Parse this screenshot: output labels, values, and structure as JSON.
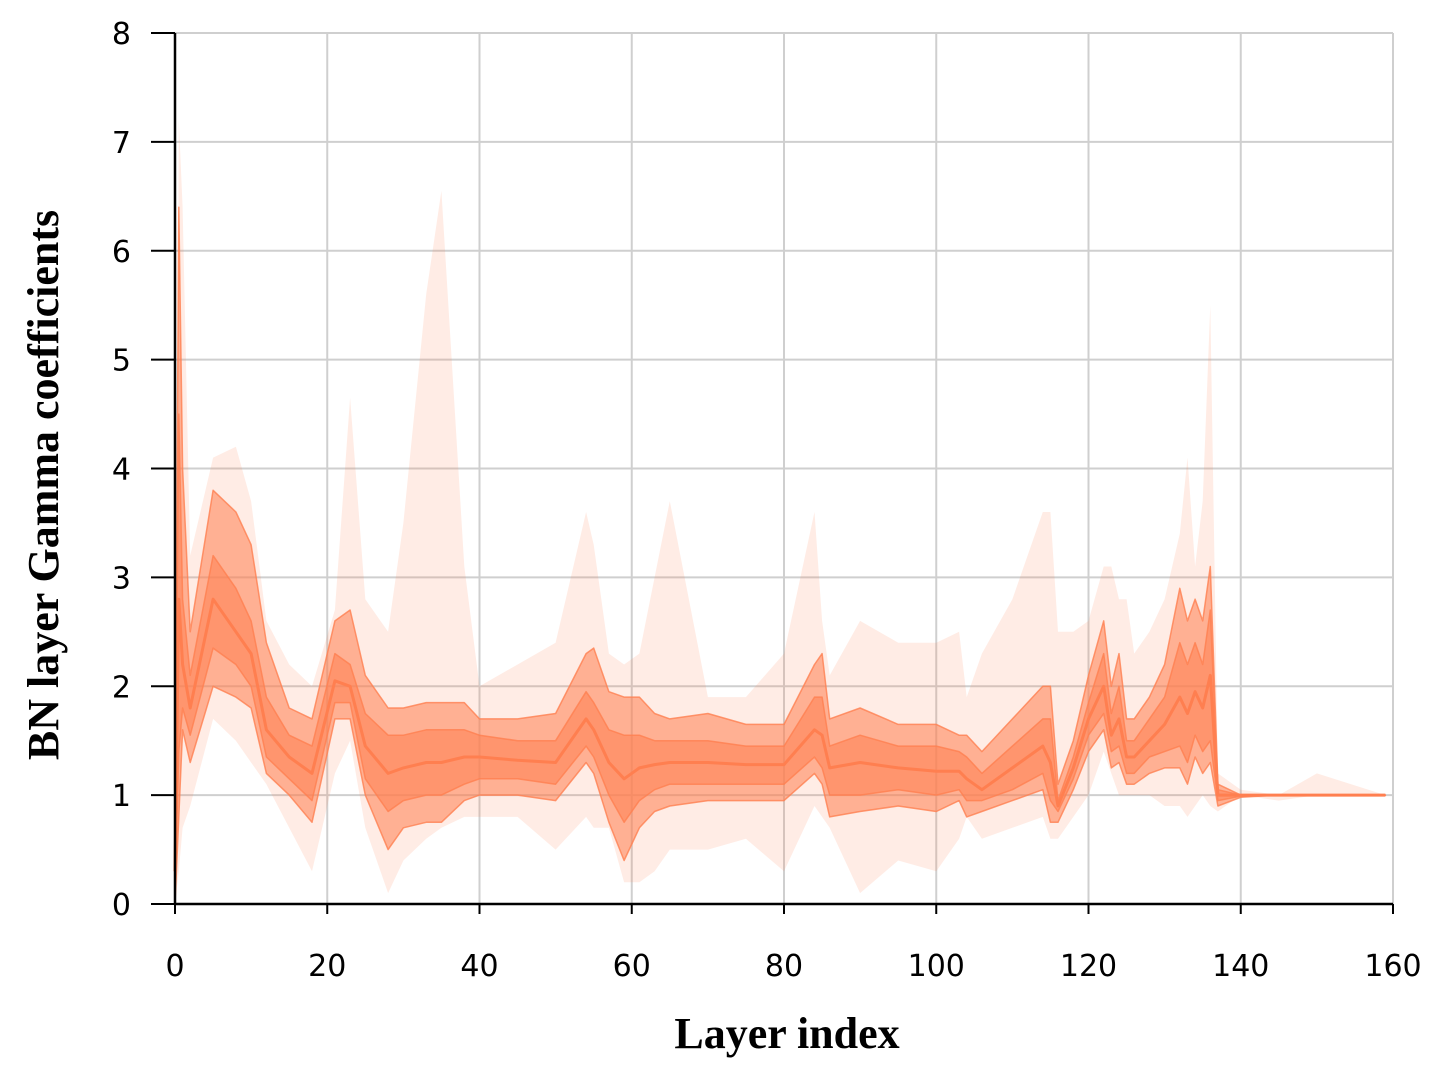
{
  "chart_data": {
    "type": "area",
    "xlabel": "Layer index",
    "ylabel": "BN layer Gamma coefficients",
    "xlim": [
      0,
      160
    ],
    "ylim": [
      0,
      8
    ],
    "xticks": [
      0,
      20,
      40,
      60,
      80,
      100,
      120,
      140,
      160
    ],
    "yticks": [
      0,
      1,
      2,
      3,
      4,
      5,
      6,
      7,
      8
    ],
    "grid": true,
    "color": "#ff7f50",
    "x": [
      0,
      0.5,
      1,
      2,
      5,
      8,
      10,
      12,
      15,
      18,
      21,
      23,
      25,
      28,
      30,
      33,
      35,
      38,
      40,
      45,
      50,
      54,
      55,
      57,
      59,
      61,
      63,
      65,
      70,
      75,
      80,
      84,
      85,
      86,
      90,
      95,
      100,
      103,
      104,
      106,
      110,
      114,
      115,
      116,
      118,
      120,
      122,
      123,
      124,
      125,
      126,
      128,
      130,
      132,
      133,
      134,
      135,
      136,
      137,
      140,
      145,
      150,
      159
    ],
    "bands": [
      {
        "level": "min-max",
        "upper": [
          0.2,
          7.2,
          6.4,
          3.2,
          4.1,
          4.2,
          3.7,
          2.6,
          2.2,
          2.0,
          2.7,
          4.65,
          2.8,
          2.5,
          3.5,
          5.6,
          6.55,
          3.1,
          2.0,
          2.2,
          2.4,
          3.6,
          3.3,
          2.3,
          2.2,
          2.3,
          3.0,
          3.7,
          1.9,
          1.9,
          2.3,
          3.6,
          2.6,
          2.1,
          2.6,
          2.4,
          2.4,
          2.5,
          1.9,
          2.3,
          2.8,
          3.6,
          3.6,
          2.5,
          2.5,
          2.6,
          3.1,
          3.1,
          2.8,
          2.8,
          2.3,
          2.5,
          2.8,
          3.4,
          4.1,
          3.1,
          3.7,
          5.5,
          1.2,
          1.05,
          1.0,
          1.2,
          1.0
        ],
        "lower": [
          0.0,
          0.3,
          0.7,
          0.9,
          1.7,
          1.5,
          1.3,
          1.1,
          0.7,
          0.3,
          1.2,
          1.5,
          0.7,
          0.1,
          0.4,
          0.6,
          0.7,
          0.8,
          0.8,
          0.8,
          0.5,
          0.8,
          0.7,
          0.7,
          0.2,
          0.2,
          0.3,
          0.5,
          0.5,
          0.6,
          0.3,
          0.9,
          0.8,
          0.7,
          0.1,
          0.4,
          0.3,
          0.6,
          0.8,
          0.6,
          0.7,
          0.8,
          0.6,
          0.6,
          0.8,
          1.0,
          1.4,
          1.2,
          1.0,
          1.0,
          1.0,
          1.0,
          0.9,
          0.9,
          0.8,
          0.9,
          1.0,
          0.9,
          0.85,
          1.0,
          0.95,
          1.0,
          1.0
        ]
      },
      {
        "level": "outer",
        "upper": [
          0.8,
          6.4,
          4.0,
          2.5,
          3.8,
          3.6,
          3.3,
          2.4,
          1.8,
          1.7,
          2.6,
          2.7,
          2.1,
          1.8,
          1.8,
          1.85,
          1.85,
          1.85,
          1.7,
          1.7,
          1.75,
          2.3,
          2.35,
          1.95,
          1.9,
          1.9,
          1.75,
          1.7,
          1.75,
          1.65,
          1.65,
          2.2,
          2.3,
          1.7,
          1.8,
          1.65,
          1.65,
          1.55,
          1.55,
          1.4,
          1.7,
          2.0,
          2.0,
          1.1,
          1.5,
          2.1,
          2.6,
          2.0,
          2.3,
          1.7,
          1.7,
          1.9,
          2.2,
          2.9,
          2.6,
          2.8,
          2.6,
          3.1,
          1.1,
          1.0,
          1.0,
          1.0,
          1.0
        ],
        "lower": [
          0.0,
          0.8,
          1.6,
          1.3,
          2.0,
          1.9,
          1.8,
          1.2,
          1.0,
          0.75,
          1.7,
          1.7,
          1.0,
          0.5,
          0.7,
          0.75,
          0.75,
          0.95,
          1.0,
          1.0,
          0.95,
          1.3,
          1.2,
          0.75,
          0.4,
          0.7,
          0.85,
          0.9,
          0.95,
          0.95,
          0.95,
          1.2,
          1.1,
          0.8,
          0.85,
          0.9,
          0.85,
          0.95,
          0.8,
          0.85,
          0.95,
          1.05,
          0.75,
          0.75,
          1.05,
          1.4,
          1.6,
          1.25,
          1.3,
          1.1,
          1.1,
          1.2,
          1.25,
          1.25,
          1.1,
          1.35,
          1.2,
          1.3,
          0.9,
          0.98,
          1.0,
          1.0,
          1.0
        ]
      },
      {
        "level": "inner",
        "upper": [
          0.6,
          4.5,
          2.8,
          2.1,
          3.2,
          2.9,
          2.6,
          1.9,
          1.55,
          1.45,
          2.3,
          2.2,
          1.75,
          1.55,
          1.55,
          1.6,
          1.6,
          1.6,
          1.55,
          1.5,
          1.5,
          1.95,
          1.85,
          1.6,
          1.55,
          1.55,
          1.5,
          1.5,
          1.5,
          1.45,
          1.45,
          1.9,
          1.9,
          1.45,
          1.55,
          1.45,
          1.45,
          1.4,
          1.35,
          1.2,
          1.45,
          1.7,
          1.7,
          0.95,
          1.35,
          1.85,
          2.3,
          1.75,
          2.0,
          1.5,
          1.5,
          1.7,
          1.9,
          2.4,
          2.2,
          2.4,
          2.2,
          2.7,
          1.05,
          1.0,
          1.0,
          1.0,
          1.0
        ],
        "lower": [
          0.1,
          1.4,
          1.8,
          1.55,
          2.35,
          2.2,
          2.0,
          1.35,
          1.15,
          0.95,
          1.85,
          1.85,
          1.15,
          0.85,
          0.95,
          1.0,
          1.0,
          1.1,
          1.15,
          1.15,
          1.1,
          1.45,
          1.35,
          1.0,
          0.75,
          0.95,
          1.05,
          1.1,
          1.1,
          1.1,
          1.1,
          1.35,
          1.25,
          1.0,
          1.0,
          1.05,
          1.0,
          1.05,
          0.95,
          0.95,
          1.05,
          1.2,
          0.95,
          0.85,
          1.15,
          1.55,
          1.75,
          1.4,
          1.45,
          1.2,
          1.2,
          1.35,
          1.4,
          1.45,
          1.3,
          1.55,
          1.4,
          1.5,
          0.95,
          0.99,
          1.0,
          1.0,
          1.0
        ]
      }
    ],
    "median": [
      0.3,
      2.8,
      2.2,
      1.8,
      2.8,
      2.5,
      2.3,
      1.6,
      1.35,
      1.2,
      2.05,
      2.0,
      1.45,
      1.2,
      1.25,
      1.3,
      1.3,
      1.35,
      1.35,
      1.32,
      1.3,
      1.7,
      1.6,
      1.3,
      1.15,
      1.25,
      1.28,
      1.3,
      1.3,
      1.28,
      1.28,
      1.6,
      1.55,
      1.25,
      1.3,
      1.25,
      1.22,
      1.22,
      1.15,
      1.05,
      1.25,
      1.45,
      1.3,
      0.9,
      1.25,
      1.7,
      2.0,
      1.55,
      1.7,
      1.35,
      1.35,
      1.5,
      1.65,
      1.9,
      1.75,
      1.95,
      1.8,
      2.1,
      1.0,
      1.0,
      1.0,
      1.0,
      1.0
    ]
  }
}
